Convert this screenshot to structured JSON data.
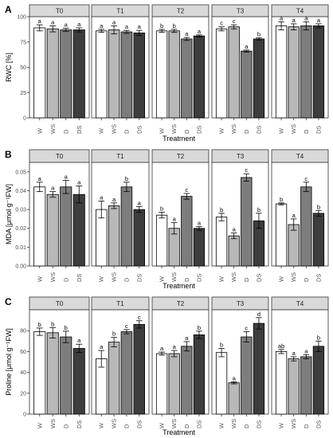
{
  "colors": {
    "W": "#ffffff",
    "WS": "#b8b8b8",
    "D": "#7d7d7d",
    "DS": "#3d3d3d",
    "strip_fill": "#d9d9d9",
    "axis": "#333333",
    "grid": "#ebebeb"
  },
  "chart_data": [
    {
      "type": "bar",
      "panel_letter": "A",
      "ylabel": "RWC [%]",
      "xlabel": "Treatment",
      "ylim": [
        0,
        100
      ],
      "yticks": [
        0,
        25,
        50,
        75,
        100
      ],
      "ytick_labels": [
        "0",
        "25",
        "50",
        "75",
        "100"
      ],
      "categories": [
        "W",
        "WS",
        "D",
        "DS"
      ],
      "grid": false,
      "facets": [
        {
          "label": "T0",
          "values": [
            89,
            88,
            87,
            87
          ],
          "errors": [
            3,
            3,
            1.5,
            2
          ],
          "letters": [
            "a",
            "a",
            "a",
            "a"
          ]
        },
        {
          "label": "T1",
          "values": [
            86,
            87,
            85,
            84
          ],
          "errors": [
            1.5,
            4,
            1.5,
            2.5
          ],
          "letters": [
            "a",
            "a",
            "a",
            "a"
          ]
        },
        {
          "label": "T2",
          "values": [
            86,
            86,
            78,
            81
          ],
          "errors": [
            1.5,
            1.5,
            1.5,
            1
          ],
          "letters": [
            "b",
            "b",
            "a",
            "a"
          ]
        },
        {
          "label": "T3",
          "values": [
            88,
            90,
            66,
            78
          ],
          "errors": [
            2,
            2,
            1,
            1
          ],
          "letters": [
            "c",
            "c",
            "a",
            "b"
          ]
        },
        {
          "label": "T4",
          "values": [
            91,
            90,
            91,
            91
          ],
          "errors": [
            4,
            3,
            4,
            2
          ],
          "letters": [
            "a",
            "a",
            "a",
            "a"
          ]
        }
      ]
    },
    {
      "type": "bar",
      "panel_letter": "B",
      "ylabel": "MDA [μmol g⁻¹FW]",
      "xlabel": "Treatment",
      "ylim": [
        0,
        0.055
      ],
      "yticks": [
        0,
        0.01,
        0.02,
        0.03,
        0.04,
        0.05
      ],
      "ytick_labels": [
        "0.00",
        "0.01",
        "0.02",
        "0.03",
        "0.04",
        "0.05"
      ],
      "categories": [
        "W",
        "WS",
        "D",
        "DS"
      ],
      "grid": false,
      "facets": [
        {
          "label": "T0",
          "values": [
            0.042,
            0.038,
            0.042,
            0.038
          ],
          "errors": [
            0.0025,
            0.0015,
            0.0035,
            0.0045
          ],
          "letters": [
            "a",
            "a",
            "a",
            "a"
          ]
        },
        {
          "label": "T1",
          "values": [
            0.03,
            0.032,
            0.042,
            0.03
          ],
          "errors": [
            0.0045,
            0.0015,
            0.0025,
            0.0015
          ],
          "letters": [
            "a",
            "a",
            "b",
            "a"
          ]
        },
        {
          "label": "T2",
          "values": [
            0.027,
            0.02,
            0.037,
            0.02
          ],
          "errors": [
            0.0015,
            0.003,
            0.0015,
            0.001
          ],
          "letters": [
            "b",
            "a",
            "c",
            "a"
          ]
        },
        {
          "label": "T3",
          "values": [
            0.026,
            0.016,
            0.047,
            0.024
          ],
          "errors": [
            0.002,
            0.0015,
            0.002,
            0.004
          ],
          "letters": [
            "b",
            "a",
            "c",
            "b"
          ]
        },
        {
          "label": "T4",
          "values": [
            0.033,
            0.022,
            0.042,
            0.028
          ],
          "errors": [
            0.0005,
            0.003,
            0.0025,
            0.0015
          ],
          "letters": [
            "b",
            "a",
            "c",
            "b"
          ]
        }
      ]
    },
    {
      "type": "bar",
      "panel_letter": "C",
      "ylabel": "Proline [μmol g⁻¹FW]",
      "xlabel": "Treatment",
      "ylim": [
        0,
        100
      ],
      "yticks": [
        0,
        20,
        40,
        60,
        80
      ],
      "ytick_labels": [
        "0",
        "20",
        "40",
        "60",
        "80"
      ],
      "categories": [
        "W",
        "WS",
        "D",
        "DS"
      ],
      "grid": false,
      "facets": [
        {
          "label": "T0",
          "values": [
            79,
            78,
            74,
            63
          ],
          "errors": [
            3.5,
            5,
            5.5,
            4
          ],
          "letters": [
            "b",
            "b",
            "b",
            "a"
          ]
        },
        {
          "label": "T1",
          "values": [
            53,
            69,
            79,
            86
          ],
          "errors": [
            8,
            4.5,
            2,
            3.5
          ],
          "letters": [
            "a",
            "b",
            "c",
            "c"
          ]
        },
        {
          "label": "T2",
          "values": [
            58,
            58,
            65,
            76
          ],
          "errors": [
            1.5,
            3,
            4.5,
            3.5
          ],
          "letters": [
            "a",
            "a",
            "a",
            "b"
          ]
        },
        {
          "label": "T3",
          "values": [
            59,
            30,
            74,
            87
          ],
          "errors": [
            4,
            1,
            5,
            5.5
          ],
          "letters": [
            "b",
            "a",
            "c",
            "d"
          ]
        },
        {
          "label": "T4",
          "values": [
            60,
            53,
            55,
            65
          ],
          "errors": [
            2,
            2,
            2,
            5
          ],
          "letters": [
            "ab",
            "a",
            "a",
            "b"
          ]
        }
      ]
    }
  ]
}
